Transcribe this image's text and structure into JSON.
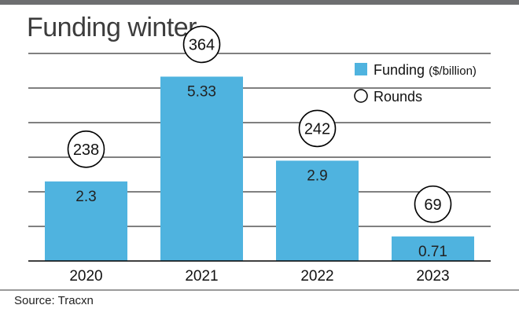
{
  "chart_data": {
    "type": "bar",
    "title": "Funding winter",
    "categories": [
      "2020",
      "2021",
      "2022",
      "2023"
    ],
    "series": [
      {
        "name": "Funding ($/billion)",
        "values": [
          2.3,
          5.33,
          2.9,
          0.71
        ],
        "labels": [
          "2.3",
          "5.33",
          "2.9",
          "0.71"
        ]
      },
      {
        "name": "Rounds",
        "values": [
          238,
          364,
          242,
          69
        ],
        "labels": [
          "238",
          "364",
          "242",
          "69"
        ]
      }
    ],
    "ylim": [
      0,
      6
    ],
    "grid": true,
    "legend": {
      "placement": "top-right",
      "funding_name": "Funding",
      "funding_unit": "($/billion)",
      "rounds_name": "Rounds"
    },
    "colors": {
      "bar": "#4fb3df",
      "grid": "#000000",
      "circle_stroke": "#000000"
    }
  },
  "source": "Source: Tracxn"
}
